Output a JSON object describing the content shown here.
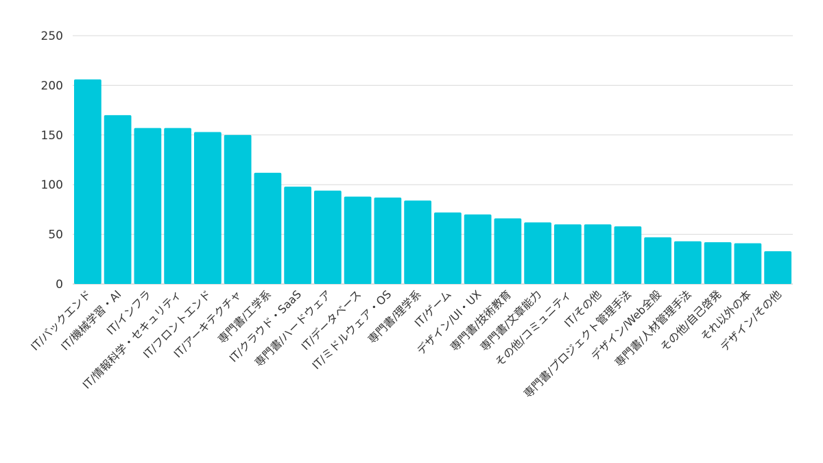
{
  "chart_data": {
    "type": "bar",
    "categories": [
      "IT/バックエンド",
      "IT/機械学習・AI",
      "IT/インフラ",
      "IT/情報科学・セキュリティ",
      "IT/フロントエンド",
      "IT/アーキテクチャ",
      "専門書/工学系",
      "IT/クラウド・SaaS",
      "専門書/ハードウェア",
      "IT/データベース",
      "IT/ミドルウェア・OS",
      "専門書/理学系",
      "IT/ゲーム",
      "デザイン/UI・UX",
      "専門書/技術教育",
      "専門書/文章能力",
      "その他/コミュニティ",
      "IT/その他",
      "専門書/プロジェクト管理手法",
      "デザイン/Web全般",
      "専門書/人材管理手法",
      "その他/自己啓発",
      "それ以外の本",
      "デザイン/その他"
    ],
    "values": [
      206,
      170,
      157,
      157,
      153,
      150,
      112,
      98,
      94,
      88,
      87,
      84,
      72,
      70,
      66,
      62,
      60,
      60,
      58,
      47,
      43,
      42,
      41,
      33
    ],
    "yticks": [
      0,
      50,
      100,
      150,
      200,
      250
    ],
    "ylim": [
      0,
      250
    ],
    "grid": true,
    "legend": "none",
    "bar_color": "#00c8dc"
  }
}
